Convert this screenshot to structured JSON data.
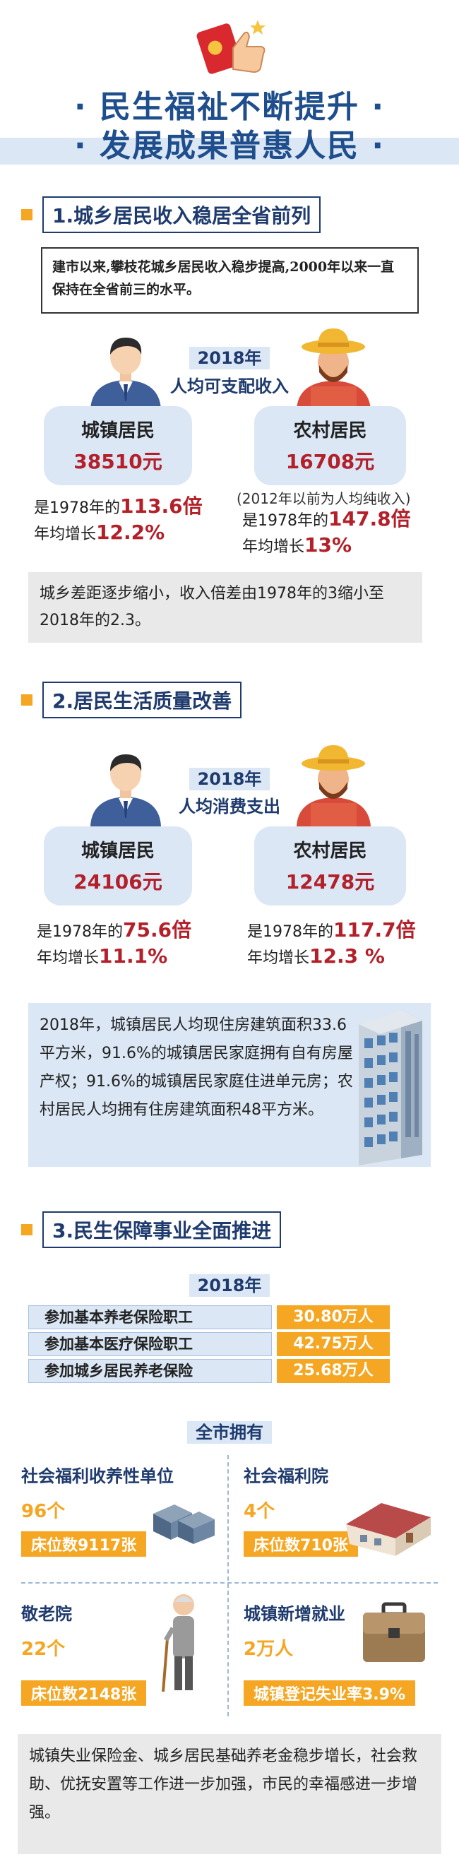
{
  "header": {
    "line1": "民生福祉不断提升",
    "line2": "发展成果普惠人民",
    "dot": "·"
  },
  "section1": {
    "title": "1.城乡居民收入稳居全省前列",
    "quote": "建市以来,攀枝花城乡居民收入稳步提高,2000年以来一直保持在全省前三的水平。",
    "year": "2018年",
    "subtitle": "人均可支配收入",
    "urban": {
      "label": "城镇居民",
      "value": "38510元",
      "multiple_prefix": "是1978年的",
      "multiple": "113.6倍",
      "growth_prefix": "年均增长",
      "growth": "12.2%"
    },
    "rural": {
      "note": "(2012年以前为人均纯收入)",
      "label": "农村居民",
      "value": "16708元",
      "multiple_prefix": "是1978年的",
      "multiple": "147.8倍",
      "growth_prefix": "年均增长",
      "growth": "13%"
    },
    "summary": "城乡差距逐步缩小，收入倍差由1978年的3缩小至2018年的2.3。"
  },
  "section2": {
    "title": "2.居民生活质量改善",
    "year": "2018年",
    "subtitle": "人均消费支出",
    "urban": {
      "label": "城镇居民",
      "value": "24106元",
      "multiple_prefix": "是1978年的",
      "multiple": "75.6倍",
      "growth_prefix": "年均增长",
      "growth": "11.1%"
    },
    "rural": {
      "label": "农村居民",
      "value": "12478元",
      "multiple_prefix": "是1978年的",
      "multiple": "117.7倍",
      "growth_prefix": "年均增长",
      "growth": "12.3 %"
    },
    "housing": "2018年，城镇居民人均现住房建筑面积33.6平方米，91.6%的城镇居民家庭拥有自有房屋产权；91.6%的城镇居民家庭住进单元房；农村居民人均拥有住房建筑面积48平方米。"
  },
  "section3": {
    "title": "3.民生保障事业全面推进",
    "year": "2018年",
    "insurance": [
      {
        "label": "参加基本养老保险职工",
        "value": "30.80万人"
      },
      {
        "label": "参加基本医疗保险职工",
        "value": "42.75万人"
      },
      {
        "label": "参加城乡居民养老保险",
        "value": "25.68万人"
      }
    ],
    "city_heading": "全市拥有",
    "facilities": [
      {
        "title": "社会福利收养性单位",
        "count": "96个",
        "bar": "床位数9117张"
      },
      {
        "title": "社会福利院",
        "count": "4个",
        "bar": "床位数710张"
      },
      {
        "title": "敬老院",
        "count": "22个",
        "bar": "床位数2148张"
      },
      {
        "title": "城镇新增就业",
        "count": "2万人",
        "bar": "城镇登记失业率3.9%"
      }
    ],
    "summary": "城镇失业保险金、城乡居民基础养老金稳步增长，社会救助、优抚安置等工作进一步加强，市民的幸福感进一步增强。"
  },
  "colors": {
    "navy": "#1f3b6e",
    "orange": "#f5a623",
    "red": "#b3202a",
    "light_blue": "#dbe7f5"
  }
}
